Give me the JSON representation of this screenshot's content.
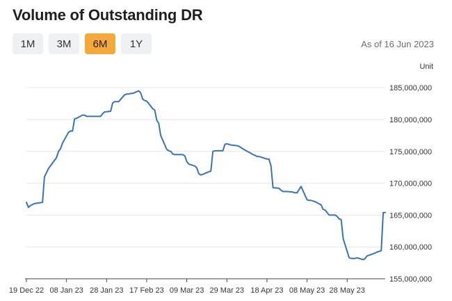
{
  "header": {
    "title": "Volume of Outstanding DR",
    "as_of": "As of 16 Jun 2023"
  },
  "range_tabs": [
    {
      "label": "1M",
      "active": false
    },
    {
      "label": "3M",
      "active": false
    },
    {
      "label": "6M",
      "active": true
    },
    {
      "label": "1Y",
      "active": false
    }
  ],
  "colors": {
    "line": "#3a72b8",
    "active_tab": "#f6a93b",
    "grid": "#e6e6e6"
  },
  "chart_data": {
    "type": "line",
    "unit_label": "Unit",
    "ylim": [
      155000000,
      186000000
    ],
    "yticks": [
      155000000,
      160000000,
      165000000,
      170000000,
      175000000,
      180000000,
      185000000
    ],
    "ytick_labels": [
      "155,000,000",
      "160,000,000",
      "165,000,000",
      "170,000,000",
      "175,000,000",
      "180,000,000",
      "185,000,000"
    ],
    "xlim": [
      "2022-12-19",
      "2023-06-16"
    ],
    "xticks": [
      "2022-12-19",
      "2023-01-08",
      "2023-01-28",
      "2023-02-17",
      "2023-03-09",
      "2023-03-29",
      "2023-04-18",
      "2023-05-08",
      "2023-05-28"
    ],
    "xtick_labels": [
      "19 Dec 22",
      "08 Jan 23",
      "28 Jan 23",
      "17 Feb 23",
      "09 Mar 23",
      "29 Mar 23",
      "18 Apr 23",
      "08 May 23",
      "28 May 23"
    ],
    "grid": true,
    "series": [
      {
        "x": [
          "2022-12-19",
          "2022-12-20",
          "2022-12-21",
          "2022-12-23",
          "2022-12-27",
          "2022-12-28",
          "2022-12-30",
          "2023-01-02",
          "2023-01-03",
          "2023-01-04",
          "2023-01-05",
          "2023-01-06",
          "2023-01-09",
          "2023-01-10",
          "2023-01-11",
          "2023-01-12",
          "2023-01-13",
          "2023-01-16",
          "2023-01-17",
          "2023-01-18",
          "2023-01-19",
          "2023-01-20",
          "2023-01-23",
          "2023-01-24",
          "2023-01-25",
          "2023-01-26",
          "2023-01-27",
          "2023-01-30",
          "2023-01-31",
          "2023-02-01",
          "2023-02-02",
          "2023-02-03",
          "2023-02-06",
          "2023-02-07",
          "2023-02-08",
          "2023-02-09",
          "2023-02-10",
          "2023-02-13",
          "2023-02-14",
          "2023-02-15",
          "2023-02-16",
          "2023-02-17",
          "2023-02-20",
          "2023-02-21",
          "2023-02-22",
          "2023-02-23",
          "2023-02-24",
          "2023-02-27",
          "2023-02-28",
          "2023-03-01",
          "2023-03-02",
          "2023-03-03",
          "2023-03-06",
          "2023-03-07",
          "2023-03-08",
          "2023-03-09",
          "2023-03-10",
          "2023-03-13",
          "2023-03-14",
          "2023-03-15",
          "2023-03-16",
          "2023-03-17",
          "2023-03-20",
          "2023-03-21",
          "2023-03-22",
          "2023-03-23",
          "2023-03-24",
          "2023-03-27",
          "2023-03-28",
          "2023-03-29",
          "2023-03-30",
          "2023-03-31",
          "2023-04-03",
          "2023-04-04",
          "2023-04-05",
          "2023-04-07",
          "2023-04-10",
          "2023-04-11",
          "2023-04-12",
          "2023-04-13",
          "2023-04-14",
          "2023-04-18",
          "2023-04-19",
          "2023-04-20",
          "2023-04-21",
          "2023-04-24",
          "2023-04-25",
          "2023-04-26",
          "2023-04-27",
          "2023-04-28",
          "2023-05-01",
          "2023-05-02",
          "2023-05-03",
          "2023-05-05",
          "2023-05-08",
          "2023-05-09",
          "2023-05-10",
          "2023-05-11",
          "2023-05-12",
          "2023-05-15",
          "2023-05-16",
          "2023-05-17",
          "2023-05-18",
          "2023-05-19",
          "2023-05-22",
          "2023-05-23",
          "2023-05-24",
          "2023-05-25",
          "2023-05-26",
          "2023-05-29",
          "2023-05-30",
          "2023-05-31",
          "2023-06-01",
          "2023-06-02",
          "2023-06-05",
          "2023-06-06",
          "2023-06-07",
          "2023-06-08",
          "2023-06-09",
          "2023-06-12",
          "2023-06-13",
          "2023-06-14",
          "2023-06-15",
          "2023-06-16"
        ],
        "y": [
          167000000,
          166200000,
          166500000,
          166800000,
          167000000,
          171000000,
          172300000,
          173600000,
          174000000,
          175000000,
          175400000,
          176300000,
          178000000,
          178200000,
          178200000,
          180100000,
          180200000,
          180700000,
          180700000,
          180500000,
          180500000,
          180500000,
          180500000,
          180500000,
          180500000,
          180900000,
          181200000,
          181300000,
          182600000,
          182800000,
          182800000,
          182800000,
          183900000,
          184000000,
          184000000,
          184100000,
          184100000,
          184500000,
          184200000,
          183200000,
          183000000,
          182900000,
          181700000,
          181500000,
          179900000,
          179400000,
          177500000,
          175300000,
          175100000,
          175000000,
          174600000,
          174500000,
          174500000,
          174500000,
          174300000,
          173400000,
          173000000,
          172700000,
          172400000,
          171500000,
          171300000,
          171400000,
          171800000,
          171900000,
          175000000,
          175100000,
          175100000,
          175100000,
          176100000,
          176200000,
          176100000,
          176000000,
          175900000,
          175800000,
          175600000,
          175200000,
          174700000,
          174500000,
          174400000,
          174200000,
          174200000,
          173800000,
          173800000,
          172700000,
          169300000,
          169200000,
          168900000,
          168700000,
          168700000,
          168700000,
          168600000,
          168500000,
          168500000,
          169500000,
          167400000,
          167300000,
          167300000,
          167200000,
          167100000,
          166600000,
          165900000,
          165800000,
          165400000,
          165000000,
          165000000,
          164800000,
          164400000,
          164300000,
          161300000,
          158300000,
          158200000,
          158200000,
          158200000,
          158300000,
          158000000,
          158200000,
          158600000,
          158700000,
          158800000,
          159200000,
          159300000,
          159400000,
          165400000,
          165400000
        ]
      }
    ]
  }
}
